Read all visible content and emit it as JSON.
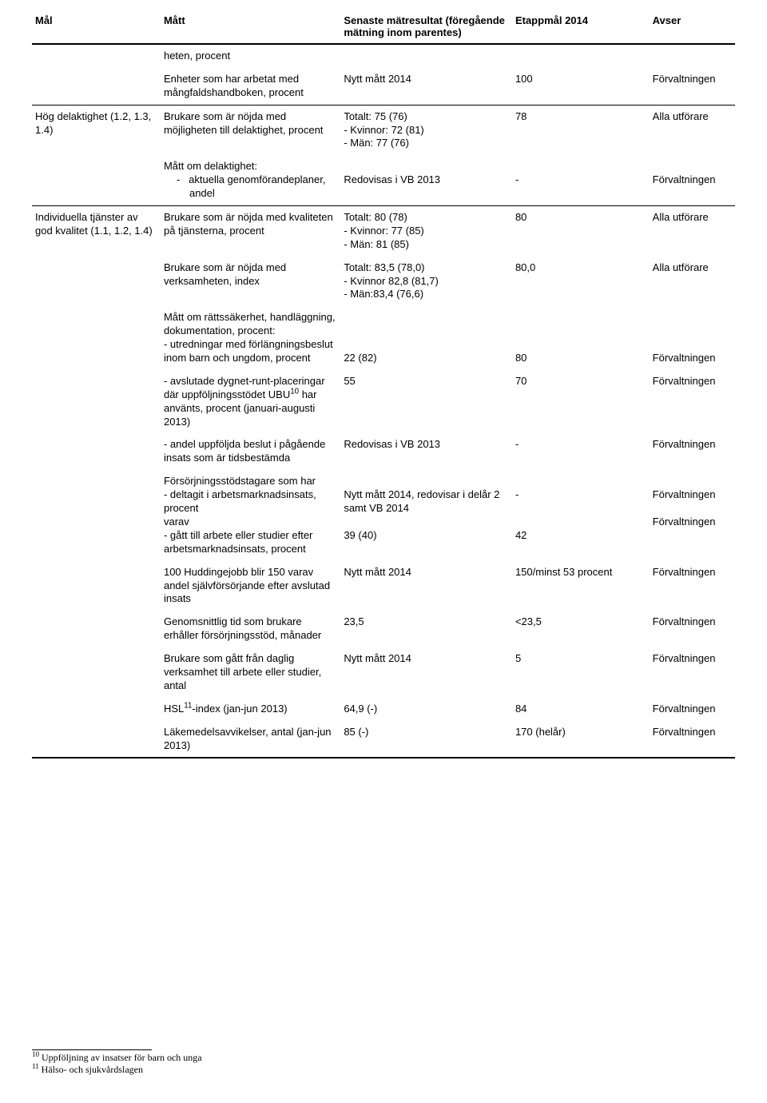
{
  "header": {
    "col0": "Mål",
    "col1": "Mått",
    "col2": "Senaste mätresultat (föregående mätning inom parentes)",
    "col3": "Etappmål 2014",
    "col4": "Avser"
  },
  "rows": {
    "r0": {
      "matt": "heten, procent"
    },
    "r1": {
      "matt": "Enheter som har arbetat med mångfaldshandboken, procent",
      "res": "Nytt mått 2014",
      "mal": "100",
      "avser": "Förvaltningen"
    },
    "r2": {
      "mal_label": "Hög delaktighet (1.2, 1.3, 1.4)",
      "matt": "Brukare som är nöjda med möjligheten till delaktighet, procent",
      "res_a": "Totalt: 75 (76)",
      "res_b": "- Kvinnor: 72 (81)",
      "res_c": "- Män: 77 (76)",
      "mal": "78",
      "avser": "Alla utförare"
    },
    "r3": {
      "matt_a": "Mått om delaktighet:",
      "matt_b": "aktuella genomförandeplaner, andel",
      "res": "Redovisas i VB 2013",
      "mal": "-",
      "avser": "Förvaltningen"
    },
    "r4": {
      "mal_label": "Individuella tjänster av god kvalitet (1.1, 1.2, 1.4)",
      "matt": "Brukare som är nöjda med kvaliteten på tjänsterna, procent",
      "res_a": "Totalt: 80 (78)",
      "res_b": "- Kvinnor: 77 (85)",
      "res_c": "- Män: 81 (85)",
      "mal": "80",
      "avser": "Alla utförare"
    },
    "r5": {
      "matt": "Brukare som är nöjda med verksamheten, index",
      "res_a": "Totalt: 83,5 (78,0)",
      "res_b": "- Kvinnor 82,8 (81,7)",
      "res_c": "- Män:83,4 (76,6)",
      "mal": "80,0",
      "avser": "Alla utförare"
    },
    "r6": {
      "matt_a": "Mått om rättssäkerhet, handläggning, dokumentation, procent:",
      "matt_b": "- utredningar med förlängningsbeslut inom barn och ungdom, procent",
      "res": "22 (82)",
      "mal": "80",
      "avser": "Förvaltningen"
    },
    "r7": {
      "matt_a": "- avslutade dygnet-runt-placeringar där uppföljningsstödet UBU",
      "matt_b": " har använts, procent (januari-augusti 2013)",
      "fn": "10",
      "res": "55",
      "mal": "70",
      "avser": "Förvaltningen"
    },
    "r8": {
      "matt": "- andel uppföljda beslut i pågående insats som är tidsbestämda",
      "res": "Redovisas i VB 2013",
      "mal": "-",
      "avser": "Förvaltningen"
    },
    "r9": {
      "matt_a": "Försörjningsstödstagare som har",
      "matt_b": "- deltagit i arbetsmarknadsinsats, procent",
      "matt_c": "varav",
      "matt_d": "- gått till arbete eller studier efter arbetsmarknadsinsats, procent",
      "res_b": "Nytt mått 2014, redovisar i delår 2 samt VB 2014",
      "res_d": "39 (40)",
      "mal_b": "-",
      "mal_d": "42",
      "avser_b": "Förvaltningen",
      "avser_d": "Förvaltningen"
    },
    "r10": {
      "matt": "100 Huddingejobb blir 150 varav andel självförsörjande efter avslutad insats",
      "res": "Nytt mått 2014",
      "mal": "150/minst 53 procent",
      "avser": "Förvaltningen"
    },
    "r11": {
      "matt": "Genomsnittlig tid som brukare erhåller försörjningsstöd, månader",
      "res": "23,5",
      "mal": "<23,5",
      "avser": "Förvaltningen"
    },
    "r12": {
      "matt": "Brukare som gått från daglig verksamhet till arbete eller studier, antal",
      "res": "Nytt mått 2014",
      "mal": "5",
      "avser": "Förvaltningen"
    },
    "r13": {
      "matt_a": "HSL",
      "fn": "11",
      "matt_b": "-index (jan-jun 2013)",
      "res": "64,9 (-)",
      "mal": "84",
      "avser": "Förvaltningen"
    },
    "r14": {
      "matt": "Läkemedelsavvikelser, antal (jan-jun 2013)",
      "res": "85 (-)",
      "mal": "170 (helår)",
      "avser": "Förvaltningen"
    }
  },
  "footnotes": {
    "f10_num": "10",
    "f10_text": " Uppföljning av insatser för barn och unga",
    "f11_num": "11",
    "f11_text": " Hälso- och sjukvårdslagen"
  }
}
